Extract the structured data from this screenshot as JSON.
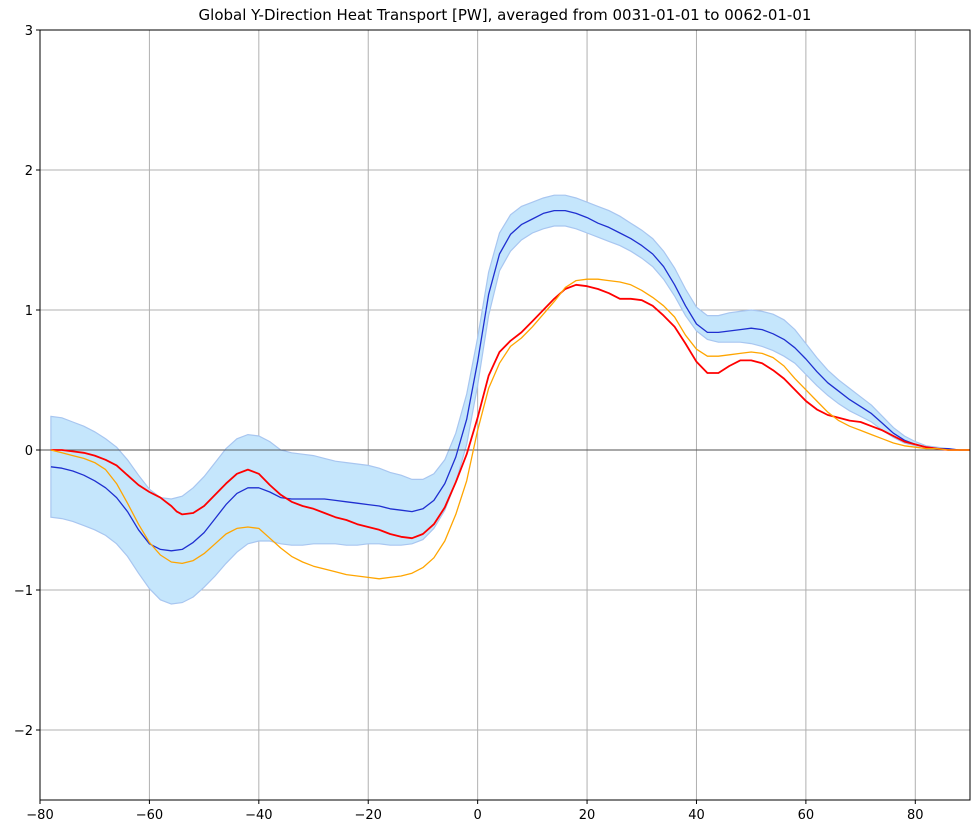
{
  "chart_data": {
    "type": "line",
    "title": "Global Y-Direction Heat Transport [PW], averaged from 0031-01-01 to 0062-01-01",
    "xlabel": "",
    "ylabel": "",
    "xlim": [
      -80,
      90
    ],
    "ylim": [
      -2.5,
      3
    ],
    "xticks": [
      -80,
      -60,
      -40,
      -20,
      0,
      20,
      40,
      60,
      80
    ],
    "xtick_labels": [
      "−80",
      "−60",
      "−40",
      "−20",
      "0",
      "20",
      "40",
      "60",
      "80"
    ],
    "yticks": [
      -2,
      -1,
      0,
      1,
      2,
      3
    ],
    "ytick_labels": [
      "−2",
      "−1",
      "0",
      "1",
      "2",
      "3"
    ],
    "grid": true,
    "zero_line": true,
    "legend": false,
    "colors": {
      "band_fill": "#c5e6fc",
      "band_edge": "#a8c6f0",
      "blue": "#1f2fd0",
      "red": "#ff0000",
      "orange": "#ffa500",
      "grid": "#b0b0b0",
      "zero": "#333333"
    },
    "band": {
      "x": [
        -78,
        -76,
        -74,
        -72,
        -70,
        -68,
        -66,
        -64,
        -62,
        -60,
        -58,
        -56,
        -54,
        -52,
        -50,
        -48,
        -46,
        -44,
        -42,
        -40,
        -38,
        -36,
        -34,
        -32,
        -30,
        -28,
        -26,
        -24,
        -22,
        -20,
        -18,
        -16,
        -14,
        -12,
        -10,
        -8,
        -6,
        -4,
        -2,
        0,
        2,
        4,
        6,
        8,
        10,
        12,
        14,
        16,
        18,
        20,
        22,
        24,
        26,
        28,
        30,
        32,
        34,
        36,
        38,
        40,
        42,
        44,
        46,
        48,
        50,
        52,
        54,
        56,
        58,
        60,
        62,
        64,
        66,
        68,
        70,
        72,
        74,
        76,
        78,
        80,
        82,
        84,
        86,
        88,
        90
      ],
      "upper": [
        0.24,
        0.23,
        0.2,
        0.17,
        0.13,
        0.08,
        0.02,
        -0.07,
        -0.18,
        -0.28,
        -0.34,
        -0.35,
        -0.33,
        -0.27,
        -0.19,
        -0.09,
        0.01,
        0.08,
        0.11,
        0.1,
        0.06,
        0.0,
        -0.02,
        -0.03,
        -0.04,
        -0.06,
        -0.08,
        -0.09,
        -0.1,
        -0.11,
        -0.13,
        -0.16,
        -0.18,
        -0.21,
        -0.21,
        -0.17,
        -0.07,
        0.12,
        0.4,
        0.8,
        1.27,
        1.55,
        1.68,
        1.74,
        1.77,
        1.8,
        1.82,
        1.82,
        1.8,
        1.77,
        1.74,
        1.71,
        1.67,
        1.62,
        1.57,
        1.51,
        1.42,
        1.3,
        1.15,
        1.02,
        0.96,
        0.96,
        0.98,
        0.99,
        1.0,
        0.99,
        0.97,
        0.93,
        0.86,
        0.76,
        0.66,
        0.57,
        0.5,
        0.44,
        0.38,
        0.32,
        0.24,
        0.16,
        0.1,
        0.06,
        0.03,
        0.02,
        0.01,
        0.0,
        0.0
      ],
      "lower": [
        -0.48,
        -0.49,
        -0.51,
        -0.54,
        -0.57,
        -0.61,
        -0.67,
        -0.76,
        -0.88,
        -0.99,
        -1.07,
        -1.1,
        -1.09,
        -1.05,
        -0.98,
        -0.9,
        -0.81,
        -0.73,
        -0.67,
        -0.65,
        -0.65,
        -0.67,
        -0.68,
        -0.68,
        -0.67,
        -0.67,
        -0.67,
        -0.68,
        -0.68,
        -0.67,
        -0.67,
        -0.68,
        -0.68,
        -0.67,
        -0.64,
        -0.56,
        -0.43,
        -0.23,
        0.04,
        0.46,
        0.96,
        1.28,
        1.42,
        1.5,
        1.55,
        1.58,
        1.6,
        1.6,
        1.58,
        1.55,
        1.52,
        1.49,
        1.46,
        1.42,
        1.37,
        1.31,
        1.22,
        1.1,
        0.96,
        0.85,
        0.79,
        0.77,
        0.77,
        0.77,
        0.76,
        0.74,
        0.71,
        0.67,
        0.62,
        0.54,
        0.46,
        0.39,
        0.33,
        0.28,
        0.24,
        0.2,
        0.14,
        0.09,
        0.05,
        0.03,
        0.02,
        0.01,
        0.0,
        0.0,
        0.0
      ]
    },
    "series": [
      {
        "color": "#1f2fd0",
        "x": [
          -78,
          -76,
          -74,
          -72,
          -70,
          -68,
          -66,
          -64,
          -62,
          -60,
          -58,
          -56,
          -54,
          -52,
          -50,
          -48,
          -46,
          -44,
          -42,
          -40,
          -38,
          -36,
          -34,
          -32,
          -30,
          -28,
          -26,
          -24,
          -22,
          -20,
          -18,
          -16,
          -14,
          -12,
          -10,
          -8,
          -6,
          -4,
          -2,
          0,
          2,
          4,
          6,
          8,
          10,
          12,
          14,
          16,
          18,
          20,
          22,
          24,
          26,
          28,
          30,
          32,
          34,
          36,
          38,
          40,
          42,
          44,
          46,
          48,
          50,
          52,
          54,
          56,
          58,
          60,
          62,
          64,
          66,
          68,
          70,
          72,
          74,
          76,
          78,
          80,
          82,
          84,
          86,
          88,
          90
        ],
        "values": [
          -0.12,
          -0.13,
          -0.15,
          -0.18,
          -0.22,
          -0.27,
          -0.34,
          -0.44,
          -0.57,
          -0.67,
          -0.71,
          -0.72,
          -0.71,
          -0.66,
          -0.59,
          -0.49,
          -0.39,
          -0.31,
          -0.27,
          -0.27,
          -0.3,
          -0.34,
          -0.35,
          -0.35,
          -0.35,
          -0.35,
          -0.36,
          -0.37,
          -0.38,
          -0.39,
          -0.4,
          -0.42,
          -0.43,
          -0.44,
          -0.42,
          -0.36,
          -0.24,
          -0.05,
          0.22,
          0.63,
          1.11,
          1.4,
          1.54,
          1.61,
          1.65,
          1.69,
          1.71,
          1.71,
          1.69,
          1.66,
          1.62,
          1.59,
          1.55,
          1.51,
          1.46,
          1.4,
          1.31,
          1.18,
          1.03,
          0.9,
          0.84,
          0.84,
          0.85,
          0.86,
          0.87,
          0.86,
          0.83,
          0.79,
          0.73,
          0.65,
          0.56,
          0.48,
          0.42,
          0.36,
          0.31,
          0.26,
          0.19,
          0.12,
          0.07,
          0.04,
          0.02,
          0.01,
          0.01,
          0.0,
          0.0
        ]
      },
      {
        "color": "#ff0000",
        "x": [
          -78,
          -76,
          -74,
          -72,
          -70,
          -68,
          -66,
          -64,
          -62,
          -60,
          -58,
          -57,
          -56,
          -55,
          -54,
          -52,
          -50,
          -48,
          -46,
          -44,
          -42,
          -40,
          -38,
          -36,
          -34,
          -32,
          -30,
          -28,
          -26,
          -24,
          -22,
          -20,
          -18,
          -16,
          -14,
          -12,
          -10,
          -8,
          -6,
          -4,
          -2,
          0,
          2,
          4,
          6,
          8,
          10,
          12,
          14,
          16,
          18,
          20,
          22,
          24,
          26,
          28,
          30,
          32,
          34,
          36,
          38,
          40,
          42,
          44,
          46,
          48,
          50,
          52,
          54,
          56,
          58,
          60,
          62,
          64,
          66,
          68,
          70,
          72,
          74,
          76,
          78,
          80,
          82,
          84,
          86,
          88,
          90
        ],
        "values": [
          0.0,
          0.0,
          -0.01,
          -0.02,
          -0.04,
          -0.07,
          -0.11,
          -0.18,
          -0.25,
          -0.3,
          -0.34,
          -0.37,
          -0.4,
          -0.44,
          -0.46,
          -0.45,
          -0.4,
          -0.32,
          -0.24,
          -0.17,
          -0.14,
          -0.17,
          -0.25,
          -0.32,
          -0.37,
          -0.4,
          -0.42,
          -0.45,
          -0.48,
          -0.5,
          -0.53,
          -0.55,
          -0.57,
          -0.6,
          -0.62,
          -0.63,
          -0.6,
          -0.53,
          -0.41,
          -0.23,
          -0.03,
          0.23,
          0.53,
          0.7,
          0.78,
          0.84,
          0.92,
          1.0,
          1.08,
          1.15,
          1.18,
          1.17,
          1.15,
          1.12,
          1.08,
          1.08,
          1.07,
          1.03,
          0.96,
          0.88,
          0.76,
          0.63,
          0.55,
          0.55,
          0.6,
          0.64,
          0.64,
          0.62,
          0.57,
          0.51,
          0.43,
          0.35,
          0.29,
          0.25,
          0.23,
          0.21,
          0.2,
          0.17,
          0.14,
          0.1,
          0.06,
          0.04,
          0.02,
          0.01,
          0.0,
          0.0,
          0.0
        ]
      },
      {
        "color": "#ffa500",
        "x": [
          -78,
          -76,
          -74,
          -72,
          -70,
          -68,
          -66,
          -64,
          -62,
          -60,
          -58,
          -56,
          -54,
          -52,
          -50,
          -48,
          -46,
          -44,
          -42,
          -40,
          -38,
          -36,
          -34,
          -32,
          -30,
          -28,
          -26,
          -24,
          -22,
          -20,
          -18,
          -16,
          -14,
          -12,
          -10,
          -8,
          -6,
          -4,
          -2,
          0,
          2,
          4,
          6,
          8,
          10,
          12,
          14,
          16,
          18,
          20,
          22,
          24,
          26,
          28,
          30,
          32,
          34,
          36,
          38,
          40,
          42,
          44,
          46,
          48,
          50,
          52,
          54,
          56,
          58,
          60,
          62,
          64,
          66,
          68,
          70,
          72,
          74,
          76,
          78,
          80,
          82,
          84,
          86,
          88,
          90
        ],
        "values": [
          0.0,
          -0.02,
          -0.04,
          -0.06,
          -0.09,
          -0.14,
          -0.24,
          -0.38,
          -0.53,
          -0.66,
          -0.75,
          -0.8,
          -0.81,
          -0.79,
          -0.74,
          -0.67,
          -0.6,
          -0.56,
          -0.55,
          -0.56,
          -0.63,
          -0.7,
          -0.76,
          -0.8,
          -0.83,
          -0.85,
          -0.87,
          -0.89,
          -0.9,
          -0.91,
          -0.92,
          -0.91,
          -0.9,
          -0.88,
          -0.84,
          -0.77,
          -0.65,
          -0.46,
          -0.22,
          0.14,
          0.44,
          0.62,
          0.74,
          0.8,
          0.88,
          0.97,
          1.06,
          1.16,
          1.21,
          1.22,
          1.22,
          1.21,
          1.2,
          1.18,
          1.14,
          1.09,
          1.03,
          0.95,
          0.82,
          0.72,
          0.67,
          0.67,
          0.68,
          0.69,
          0.7,
          0.69,
          0.66,
          0.6,
          0.51,
          0.43,
          0.35,
          0.27,
          0.21,
          0.17,
          0.14,
          0.11,
          0.08,
          0.05,
          0.03,
          0.02,
          0.01,
          0.01,
          0.0,
          0.0,
          0.0
        ]
      }
    ]
  }
}
